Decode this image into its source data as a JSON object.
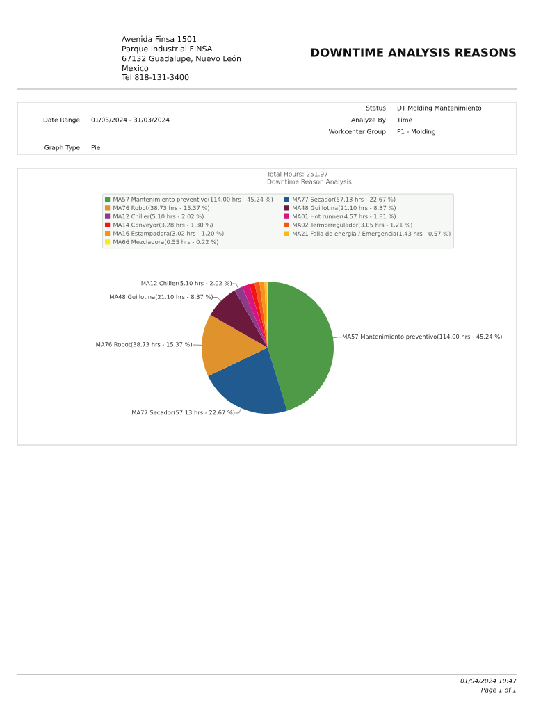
{
  "chart_data": {
    "type": "pie",
    "title": "DOWNTIME ANALYSIS REASONS",
    "subtitle": "Total Hours: 251.97",
    "categories": [
      "MA57 Mantenimiento preventivo(114.00 hrs - 45.24 %)",
      "MA77 Secador(57.13 hrs - 22.67 %)",
      "MA76 Robot(38.73 hrs - 15.37 %)",
      "MA48 Guillotina(21.10 hrs - 8.37 %)",
      "MA12 Chiller(5.10 hrs - 2.02 %)",
      "MA01 Hot runner(4.57 hrs - 1.81 %)",
      "MA14 Conveyor(3.28 hrs - 1.30 %)",
      "MA02 Termorregulador(3.05 hrs - 1.21 %)",
      "MA16 Estampadora(3.02 hrs - 1.20 %)",
      "MA21 Falla de energía / Emergencia(1.43 hrs - 0.57 %)",
      "MA66 Mezcladora(0.55 hrs - 0.22 %)"
    ],
    "values": [
      114.0,
      57.13,
      38.73,
      21.1,
      5.1,
      4.57,
      3.28,
      3.05,
      3.02,
      1.43,
      0.55
    ],
    "colors": [
      "#4e9a47",
      "#215a8f",
      "#e0922d",
      "#6b1a3d",
      "#8e3a8a",
      "#d6157f",
      "#f01616",
      "#f05a14",
      "#f7921e",
      "#f9b81a",
      "#f7ec1a"
    ],
    "value_labels": [
      "MA57 Mantenimiento preventivo(114.00 hrs - 45.24 %)",
      "MA77 Secador(57.13 hrs - 22.67 %)",
      "MA76 Robot(38.73 hrs - 15.37 %)",
      "MA48 Guillotina(21.10 hrs - 8.37 %)",
      "MA12 Chiller(5.10 hrs - 2.02 %)",
      null,
      null,
      null,
      null,
      null,
      null
    ],
    "legend": "top",
    "annotations": [
      "Avenida Finsa 1501",
      "Parque Industrial FINSA",
      "67132 Guadalupe, Nuevo León",
      "Mexico",
      "Tel 818-131-3400",
      "Status",
      "DT Molding Mantenimiento",
      "Date Range",
      "01/03/2024 - 31/03/2024",
      "Analyze By",
      "Time",
      "Workcenter Group",
      "P1 - Molding",
      "Graph Type",
      "Pie",
      "Downtime Reason Analysis",
      "01/04/2024 10:47",
      "Page 1 of 1"
    ]
  }
}
